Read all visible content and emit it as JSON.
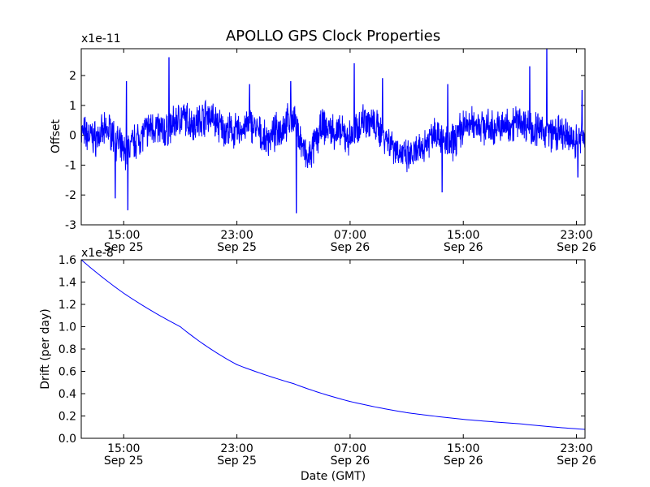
{
  "chart_data": {
    "title": "APOLLO GPS Clock Properties",
    "xlabel": "Date (GMT)",
    "xticks": [
      {
        "time": "15:00",
        "date": "Sep 25"
      },
      {
        "time": "23:00",
        "date": "Sep 25"
      },
      {
        "time": "07:00",
        "date": "Sep 26"
      },
      {
        "time": "15:00",
        "date": "Sep 26"
      },
      {
        "time": "23:00",
        "date": "Sep 26"
      }
    ],
    "xrange_hours": [
      -3,
      32.6
    ],
    "xtick_hours": [
      0,
      8,
      16,
      24,
      32
    ],
    "subplots": [
      {
        "type": "line",
        "ylabel": "Offset",
        "multiplier": "x1e-11",
        "ylim": [
          -3,
          2.9
        ],
        "yticks": [
          "2",
          "1",
          "0",
          "-1",
          "-2",
          "-3"
        ],
        "ytick_values": [
          2,
          1,
          0,
          -1,
          -2,
          -3
        ],
        "color": "#0000ff",
        "series_description": "noisy offset signal",
        "x_hours": [
          -3,
          -2,
          -1,
          0,
          1,
          2,
          3,
          4,
          5,
          6,
          7,
          8,
          9,
          10,
          11,
          12,
          13,
          14,
          15,
          16,
          17,
          18,
          19,
          20,
          21,
          22,
          23,
          24,
          25,
          26,
          27,
          28,
          29,
          30,
          31,
          32,
          32.6
        ],
        "values": [
          0.1,
          -0.1,
          0.2,
          -0.6,
          -0.1,
          0.3,
          0.1,
          0.6,
          0.4,
          0.7,
          0.2,
          0.1,
          0.4,
          -0.2,
          0.2,
          0.6,
          -0.9,
          0.3,
          0.1,
          -0.1,
          0.6,
          0.2,
          -0.3,
          -0.8,
          -0.5,
          0.2,
          -0.4,
          0.3,
          0.4,
          0.2,
          0.3,
          0.5,
          0.2,
          0.1,
          0.0,
          -0.2,
          0.0
        ],
        "spikes": [
          {
            "x": 0.2,
            "v": 1.8
          },
          {
            "x": 0.3,
            "v": -2.5
          },
          {
            "x": -0.6,
            "v": -2.1
          },
          {
            "x": 3.2,
            "v": 2.6
          },
          {
            "x": 8.9,
            "v": 1.7
          },
          {
            "x": 11.8,
            "v": 1.8
          },
          {
            "x": 12.2,
            "v": -2.6
          },
          {
            "x": 16.3,
            "v": 2.4
          },
          {
            "x": 18.3,
            "v": 1.9
          },
          {
            "x": 22.5,
            "v": -1.9
          },
          {
            "x": 22.9,
            "v": 1.7
          },
          {
            "x": 28.7,
            "v": 2.3
          },
          {
            "x": 29.9,
            "v": 2.9
          },
          {
            "x": 32.1,
            "v": -1.4
          },
          {
            "x": 32.4,
            "v": 1.5
          }
        ]
      },
      {
        "type": "line",
        "ylabel": "Drift (per day)",
        "multiplier": "x1e-8",
        "ylim": [
          0,
          1.6
        ],
        "yticks": [
          "1.6",
          "1.4",
          "1.2",
          "1.0",
          "0.8",
          "0.6",
          "0.4",
          "0.2",
          "0.0"
        ],
        "ytick_values": [
          1.6,
          1.4,
          1.2,
          1.0,
          0.8,
          0.6,
          0.4,
          0.2,
          0.0
        ],
        "color": "#0000ff",
        "x_hours": [
          -3,
          0,
          4,
          8,
          12,
          16,
          20,
          24,
          28,
          32.6
        ],
        "values": [
          1.6,
          1.3,
          1.0,
          0.66,
          0.49,
          0.33,
          0.23,
          0.17,
          0.13,
          0.08
        ]
      }
    ]
  }
}
